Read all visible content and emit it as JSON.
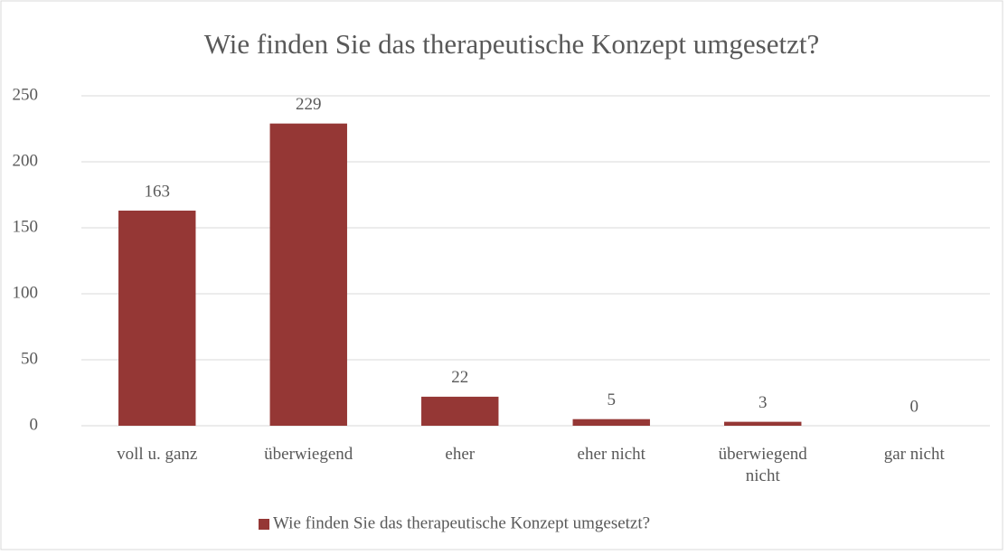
{
  "chart_data": {
    "type": "bar",
    "title": "Wie finden Sie das therapeutische Konzept umgesetzt?",
    "categories": [
      "voll u. ganz",
      "überwiegend",
      "eher",
      "eher nicht",
      "überwiegend nicht",
      "gar nicht"
    ],
    "series": [
      {
        "name": "Wie finden Sie das therapeutische Konzept umgesetzt?",
        "color": "#953735",
        "values": [
          163,
          229,
          22,
          5,
          3,
          0
        ]
      }
    ],
    "ylim": [
      0,
      250
    ],
    "yticks": [
      0,
      50,
      100,
      150,
      200,
      250
    ],
    "grid": true,
    "legend": "bottom",
    "data_labels": true
  }
}
